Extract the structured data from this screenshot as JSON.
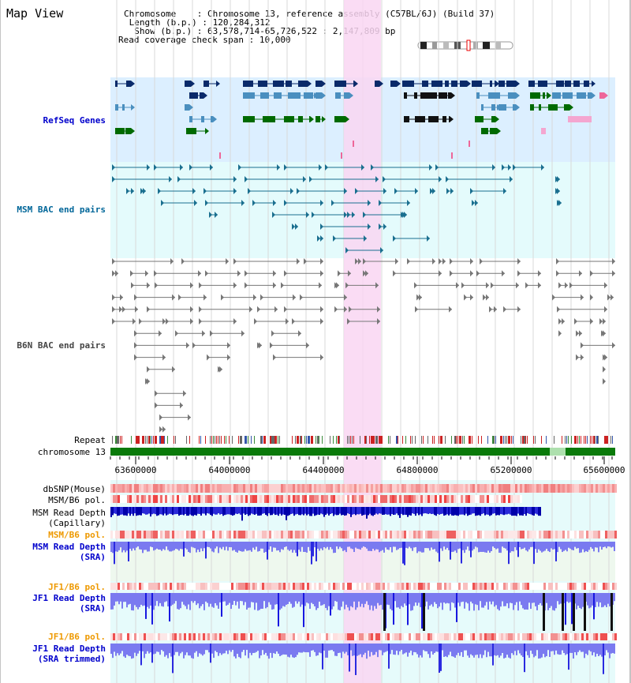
{
  "view": {
    "title": "Map View",
    "info_rows": [
      {
        "key": "Chromosome   ",
        "value": ": Chromosome 13, reference assembly (C57BL/6J) (Build 37)"
      },
      {
        "key": " Length (b.p.)",
        "value": ": 120,284,312"
      },
      {
        "key": "  Show (b.p.)",
        "value": ": 63,578,714-65,726,522 : 2,147,809 bp"
      },
      {
        "key": "Read coverage check span",
        "value": ": 10,000"
      }
    ]
  },
  "tracks": {
    "refseq": "RefSeq Genes",
    "msm_bac": "MSM BAC end pairs",
    "b6n_bac": "B6N BAC end pairs",
    "repeat": "Repeat",
    "chromosome": "chromosome 13",
    "dbsnp": "dbSNP(Mouse)",
    "msm_b6_pol": "MSM/B6 pol.",
    "msm_depth_cap_1": "MSM Read Depth",
    "msm_depth_cap_2": "(Capillary)",
    "msm_b6_pol_2": "MSM/B6 pol.",
    "msm_depth_sra_1": "MSM Read Depth",
    "msm_depth_sra_2": "(SRA)",
    "jf1_b6_pol": "JF1/B6 pol.",
    "jf1_depth_sra_1": "JF1 Read Depth",
    "jf1_depth_sra_2": "(SRA)",
    "jf1_b6_pol_2": "JF1/B6 pol.",
    "jf1_depth_trim_1": "JF1 Read Depth",
    "jf1_depth_trim_2": "(SRA trimmed)"
  },
  "axis": {
    "ticks": [
      "63600000",
      "64000000",
      "64400000",
      "64800000",
      "65200000",
      "65600000"
    ]
  },
  "colors": {
    "highlight": "#f9d6f2",
    "refseq_bg": "#dcefff",
    "bac_bg": "#e4fbfc",
    "gene_dark": "#0a2a6a",
    "gene_mid": "#4a8fbf",
    "gene_green": "#006a00",
    "msm_bac": "#1a6f8f",
    "b6n_bac": "#777777",
    "chromosome": "#0a7a0a",
    "depth_blue": "#2020ee",
    "depth_light": "#7a7af0"
  }
}
